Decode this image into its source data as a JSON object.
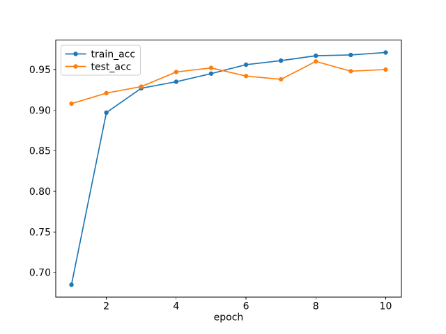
{
  "chart_data": {
    "type": "line",
    "title": "",
    "xlabel": "epoch",
    "ylabel": "",
    "x": [
      1,
      2,
      3,
      4,
      5,
      6,
      7,
      8,
      9,
      10
    ],
    "series": [
      {
        "name": "train_acc",
        "color": "#1f77b4",
        "marker": "o",
        "values": [
          0.685,
          0.897,
          0.927,
          0.935,
          0.945,
          0.956,
          0.961,
          0.967,
          0.968,
          0.971
        ]
      },
      {
        "name": "test_acc",
        "color": "#ff7f0e",
        "marker": "o",
        "values": [
          0.908,
          0.921,
          0.929,
          0.947,
          0.952,
          0.942,
          0.938,
          0.96,
          0.948,
          0.95
        ]
      }
    ],
    "xlim": [
      0.55,
      10.45
    ],
    "ylim": [
      0.6696,
      0.9863
    ],
    "xticks": {
      "values": [
        2,
        4,
        6,
        8,
        10
      ],
      "labels": [
        "2",
        "4",
        "6",
        "8",
        "10"
      ]
    },
    "yticks": {
      "values": [
        0.7,
        0.75,
        0.8,
        0.85,
        0.9,
        0.95
      ],
      "labels": [
        "0.70",
        "0.75",
        "0.80",
        "0.85",
        "0.90",
        "0.95"
      ]
    },
    "legend": {
      "location": "upper left",
      "entries": [
        "train_acc",
        "test_acc"
      ],
      "frame_color": "#cccccc",
      "frame_fill": "#ffffff"
    },
    "grid": false,
    "spine_color": "#000000",
    "background": "#ffffff"
  }
}
